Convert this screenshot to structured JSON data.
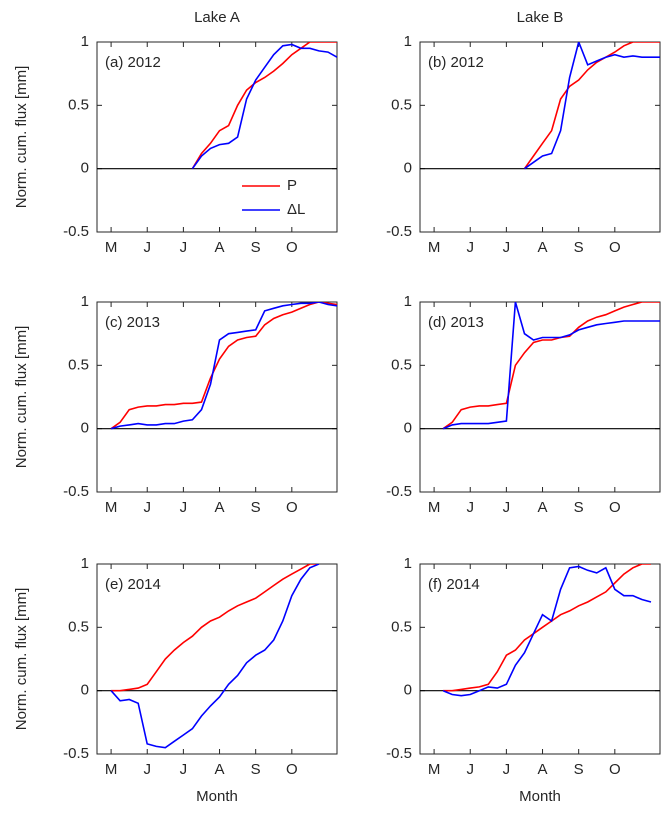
{
  "chart_data": [
    {
      "type": "line",
      "column_title": "Lake A",
      "panel_label": "(a) 2012",
      "ylabel": "Norm. cum. flux [mm]",
      "x": [
        5.0,
        5.25,
        5.5,
        5.75,
        6.0,
        6.25,
        6.5,
        6.75,
        7.0,
        7.25,
        7.5,
        7.75,
        8.0,
        8.25,
        8.5,
        8.75,
        9.0,
        9.25,
        9.5,
        9.75,
        10.0,
        10.25,
        10.5,
        10.75,
        11.0,
        11.25
      ],
      "series": [
        {
          "name": "P",
          "color": "#ff0000",
          "values": [
            null,
            null,
            null,
            null,
            null,
            null,
            null,
            null,
            null,
            0,
            0.12,
            0.2,
            0.3,
            0.34,
            0.5,
            0.62,
            0.68,
            0.72,
            0.77,
            0.83,
            0.9,
            0.95,
            1.0,
            1.0,
            1.0,
            1.0
          ]
        },
        {
          "name": "ΔL",
          "color": "#0000ff",
          "values": [
            null,
            null,
            null,
            null,
            null,
            null,
            null,
            null,
            null,
            0,
            0.1,
            0.16,
            0.19,
            0.2,
            0.25,
            0.55,
            0.7,
            0.8,
            0.9,
            0.97,
            0.98,
            0.95,
            0.95,
            0.93,
            0.92,
            0.88
          ]
        }
      ],
      "xlim": [
        4.61,
        11.25
      ],
      "xticks": [
        {
          "value": 5,
          "label": "M"
        },
        {
          "value": 6,
          "label": "J"
        },
        {
          "value": 7,
          "label": "J"
        },
        {
          "value": 8,
          "label": "A"
        },
        {
          "value": 9,
          "label": "S"
        },
        {
          "value": 10,
          "label": "O"
        }
      ],
      "ylim": [
        -0.5,
        1
      ],
      "yticks": [
        -0.5,
        0,
        0.5,
        1
      ],
      "reference_line": 0,
      "legend": "lower right"
    },
    {
      "type": "line",
      "column_title": "Lake B",
      "panel_label": "(b) 2012",
      "x": [
        5.0,
        5.25,
        5.5,
        5.75,
        6.0,
        6.25,
        6.5,
        6.75,
        7.0,
        7.25,
        7.5,
        7.75,
        8.0,
        8.25,
        8.5,
        8.75,
        9.0,
        9.25,
        9.5,
        9.75,
        10.0,
        10.25,
        10.5,
        10.75,
        11.0,
        11.25
      ],
      "series": [
        {
          "name": "P",
          "color": "#ff0000",
          "values": [
            null,
            null,
            null,
            null,
            null,
            null,
            null,
            null,
            null,
            null,
            0,
            0.1,
            0.2,
            0.3,
            0.55,
            0.65,
            0.7,
            0.78,
            0.84,
            0.88,
            0.92,
            0.97,
            1.0,
            1.0,
            1.0,
            1.0
          ]
        },
        {
          "name": "ΔL",
          "color": "#0000ff",
          "values": [
            null,
            null,
            null,
            null,
            null,
            null,
            null,
            null,
            null,
            null,
            0,
            0.05,
            0.1,
            0.12,
            0.3,
            0.72,
            1.0,
            0.82,
            0.85,
            0.88,
            0.9,
            0.88,
            0.89,
            0.88,
            0.88,
            0.88
          ]
        }
      ],
      "xlim": [
        4.61,
        11.25
      ],
      "xticks": [
        {
          "value": 5,
          "label": "M"
        },
        {
          "value": 6,
          "label": "J"
        },
        {
          "value": 7,
          "label": "J"
        },
        {
          "value": 8,
          "label": "A"
        },
        {
          "value": 9,
          "label": "S"
        },
        {
          "value": 10,
          "label": "O"
        }
      ],
      "ylim": [
        -0.5,
        1
      ],
      "yticks": [
        -0.5,
        0,
        0.5,
        1
      ],
      "reference_line": 0
    },
    {
      "type": "line",
      "panel_label": "(c) 2013",
      "ylabel": "Norm. cum. flux [mm]",
      "x": [
        5.0,
        5.25,
        5.5,
        5.75,
        6.0,
        6.25,
        6.5,
        6.75,
        7.0,
        7.25,
        7.5,
        7.75,
        8.0,
        8.25,
        8.5,
        8.75,
        9.0,
        9.25,
        9.5,
        9.75,
        10.0,
        10.25,
        10.5,
        10.75,
        11.0,
        11.25
      ],
      "series": [
        {
          "name": "P",
          "color": "#ff0000",
          "values": [
            0,
            0.05,
            0.15,
            0.17,
            0.18,
            0.18,
            0.19,
            0.19,
            0.2,
            0.2,
            0.21,
            0.4,
            0.55,
            0.65,
            0.7,
            0.72,
            0.73,
            0.82,
            0.87,
            0.9,
            0.92,
            0.95,
            0.98,
            1.0,
            0.99,
            0.98
          ]
        },
        {
          "name": "ΔL",
          "color": "#0000ff",
          "values": [
            0,
            0.02,
            0.03,
            0.04,
            0.03,
            0.03,
            0.04,
            0.04,
            0.06,
            0.07,
            0.15,
            0.35,
            0.7,
            0.75,
            0.76,
            0.77,
            0.78,
            0.93,
            0.95,
            0.97,
            0.98,
            0.99,
            0.99,
            1.0,
            0.98,
            0.97
          ]
        }
      ],
      "xlim": [
        4.61,
        11.25
      ],
      "xticks": [
        {
          "value": 5,
          "label": "M"
        },
        {
          "value": 6,
          "label": "J"
        },
        {
          "value": 7,
          "label": "J"
        },
        {
          "value": 8,
          "label": "A"
        },
        {
          "value": 9,
          "label": "S"
        },
        {
          "value": 10,
          "label": "O"
        }
      ],
      "ylim": [
        -0.5,
        1
      ],
      "yticks": [
        -0.5,
        0,
        0.5,
        1
      ],
      "reference_line": 0
    },
    {
      "type": "line",
      "panel_label": "(d) 2013",
      "x": [
        5.0,
        5.25,
        5.5,
        5.75,
        6.0,
        6.25,
        6.5,
        6.75,
        7.0,
        7.25,
        7.5,
        7.75,
        8.0,
        8.25,
        8.5,
        8.75,
        9.0,
        9.25,
        9.5,
        9.75,
        10.0,
        10.25,
        10.5,
        10.75,
        11.0,
        11.25
      ],
      "series": [
        {
          "name": "P",
          "color": "#ff0000",
          "values": [
            null,
            0,
            0.05,
            0.15,
            0.17,
            0.18,
            0.18,
            0.19,
            0.2,
            0.5,
            0.6,
            0.68,
            0.7,
            0.7,
            0.72,
            0.73,
            0.8,
            0.85,
            0.88,
            0.9,
            0.93,
            0.96,
            0.98,
            1.0,
            1.0,
            1.0
          ]
        },
        {
          "name": "ΔL",
          "color": "#0000ff",
          "values": [
            null,
            0,
            0.03,
            0.04,
            0.04,
            0.04,
            0.04,
            0.05,
            0.06,
            1.0,
            0.75,
            0.7,
            0.72,
            0.72,
            0.72,
            0.74,
            0.78,
            0.8,
            0.82,
            0.83,
            0.84,
            0.85,
            0.85,
            0.85,
            0.85,
            0.85
          ]
        }
      ],
      "xlim": [
        4.61,
        11.25
      ],
      "xticks": [
        {
          "value": 5,
          "label": "M"
        },
        {
          "value": 6,
          "label": "J"
        },
        {
          "value": 7,
          "label": "J"
        },
        {
          "value": 8,
          "label": "A"
        },
        {
          "value": 9,
          "label": "S"
        },
        {
          "value": 10,
          "label": "O"
        }
      ],
      "ylim": [
        -0.5,
        1
      ],
      "yticks": [
        -0.5,
        0,
        0.5,
        1
      ],
      "reference_line": 0
    },
    {
      "type": "line",
      "panel_label": "(e) 2014",
      "ylabel": "Norm. cum. flux [mm]",
      "xlabel": "Month",
      "x": [
        5.0,
        5.25,
        5.5,
        5.75,
        6.0,
        6.25,
        6.5,
        6.75,
        7.0,
        7.25,
        7.5,
        7.75,
        8.0,
        8.25,
        8.5,
        8.75,
        9.0,
        9.25,
        9.5,
        9.75,
        10.0,
        10.25,
        10.5,
        10.75,
        11.0,
        11.25
      ],
      "series": [
        {
          "name": "P",
          "color": "#ff0000",
          "values": [
            0,
            0,
            0.01,
            0.02,
            0.05,
            0.15,
            0.25,
            0.32,
            0.38,
            0.43,
            0.5,
            0.55,
            0.58,
            0.63,
            0.67,
            0.7,
            0.73,
            0.78,
            0.83,
            0.88,
            0.92,
            0.96,
            1.0,
            1.0,
            null,
            null
          ]
        },
        {
          "name": "ΔL",
          "color": "#0000ff",
          "values": [
            0,
            -0.08,
            -0.07,
            -0.1,
            -0.42,
            -0.44,
            -0.45,
            -0.4,
            -0.35,
            -0.3,
            -0.2,
            -0.12,
            -0.05,
            0.05,
            0.12,
            0.22,
            0.28,
            0.32,
            0.4,
            0.55,
            0.75,
            0.88,
            0.97,
            1.0,
            null,
            null
          ]
        }
      ],
      "xlim": [
        4.61,
        11.25
      ],
      "xticks": [
        {
          "value": 5,
          "label": "M"
        },
        {
          "value": 6,
          "label": "J"
        },
        {
          "value": 7,
          "label": "J"
        },
        {
          "value": 8,
          "label": "A"
        },
        {
          "value": 9,
          "label": "S"
        },
        {
          "value": 10,
          "label": "O"
        }
      ],
      "ylim": [
        -0.5,
        1
      ],
      "yticks": [
        -0.5,
        0,
        0.5,
        1
      ],
      "reference_line": 0
    },
    {
      "type": "line",
      "panel_label": "(f) 2014",
      "xlabel": "Month",
      "x": [
        5.0,
        5.25,
        5.5,
        5.75,
        6.0,
        6.25,
        6.5,
        6.75,
        7.0,
        7.25,
        7.5,
        7.75,
        8.0,
        8.25,
        8.5,
        8.75,
        9.0,
        9.25,
        9.5,
        9.75,
        10.0,
        10.25,
        10.5,
        10.75,
        11.0,
        11.25
      ],
      "series": [
        {
          "name": "P",
          "color": "#ff0000",
          "values": [
            null,
            0,
            0,
            0.01,
            0.02,
            0.03,
            0.05,
            0.15,
            0.28,
            0.32,
            0.4,
            0.45,
            0.5,
            0.55,
            0.6,
            0.63,
            0.67,
            0.7,
            0.74,
            0.78,
            0.85,
            0.92,
            0.97,
            1.0,
            1.0,
            null
          ]
        },
        {
          "name": "ΔL",
          "color": "#0000ff",
          "values": [
            null,
            0,
            -0.03,
            -0.04,
            -0.03,
            0,
            0.03,
            0.02,
            0.05,
            0.2,
            0.3,
            0.45,
            0.6,
            0.55,
            0.8,
            0.97,
            0.98,
            0.95,
            0.93,
            0.97,
            0.8,
            0.75,
            0.75,
            0.72,
            0.7,
            null
          ]
        }
      ],
      "xlim": [
        4.61,
        11.25
      ],
      "xticks": [
        {
          "value": 5,
          "label": "M"
        },
        {
          "value": 6,
          "label": "J"
        },
        {
          "value": 7,
          "label": "J"
        },
        {
          "value": 8,
          "label": "A"
        },
        {
          "value": 9,
          "label": "S"
        },
        {
          "value": 10,
          "label": "O"
        }
      ],
      "ylim": [
        -0.5,
        1
      ],
      "yticks": [
        -0.5,
        0,
        0.5,
        1
      ],
      "reference_line": 0
    }
  ]
}
